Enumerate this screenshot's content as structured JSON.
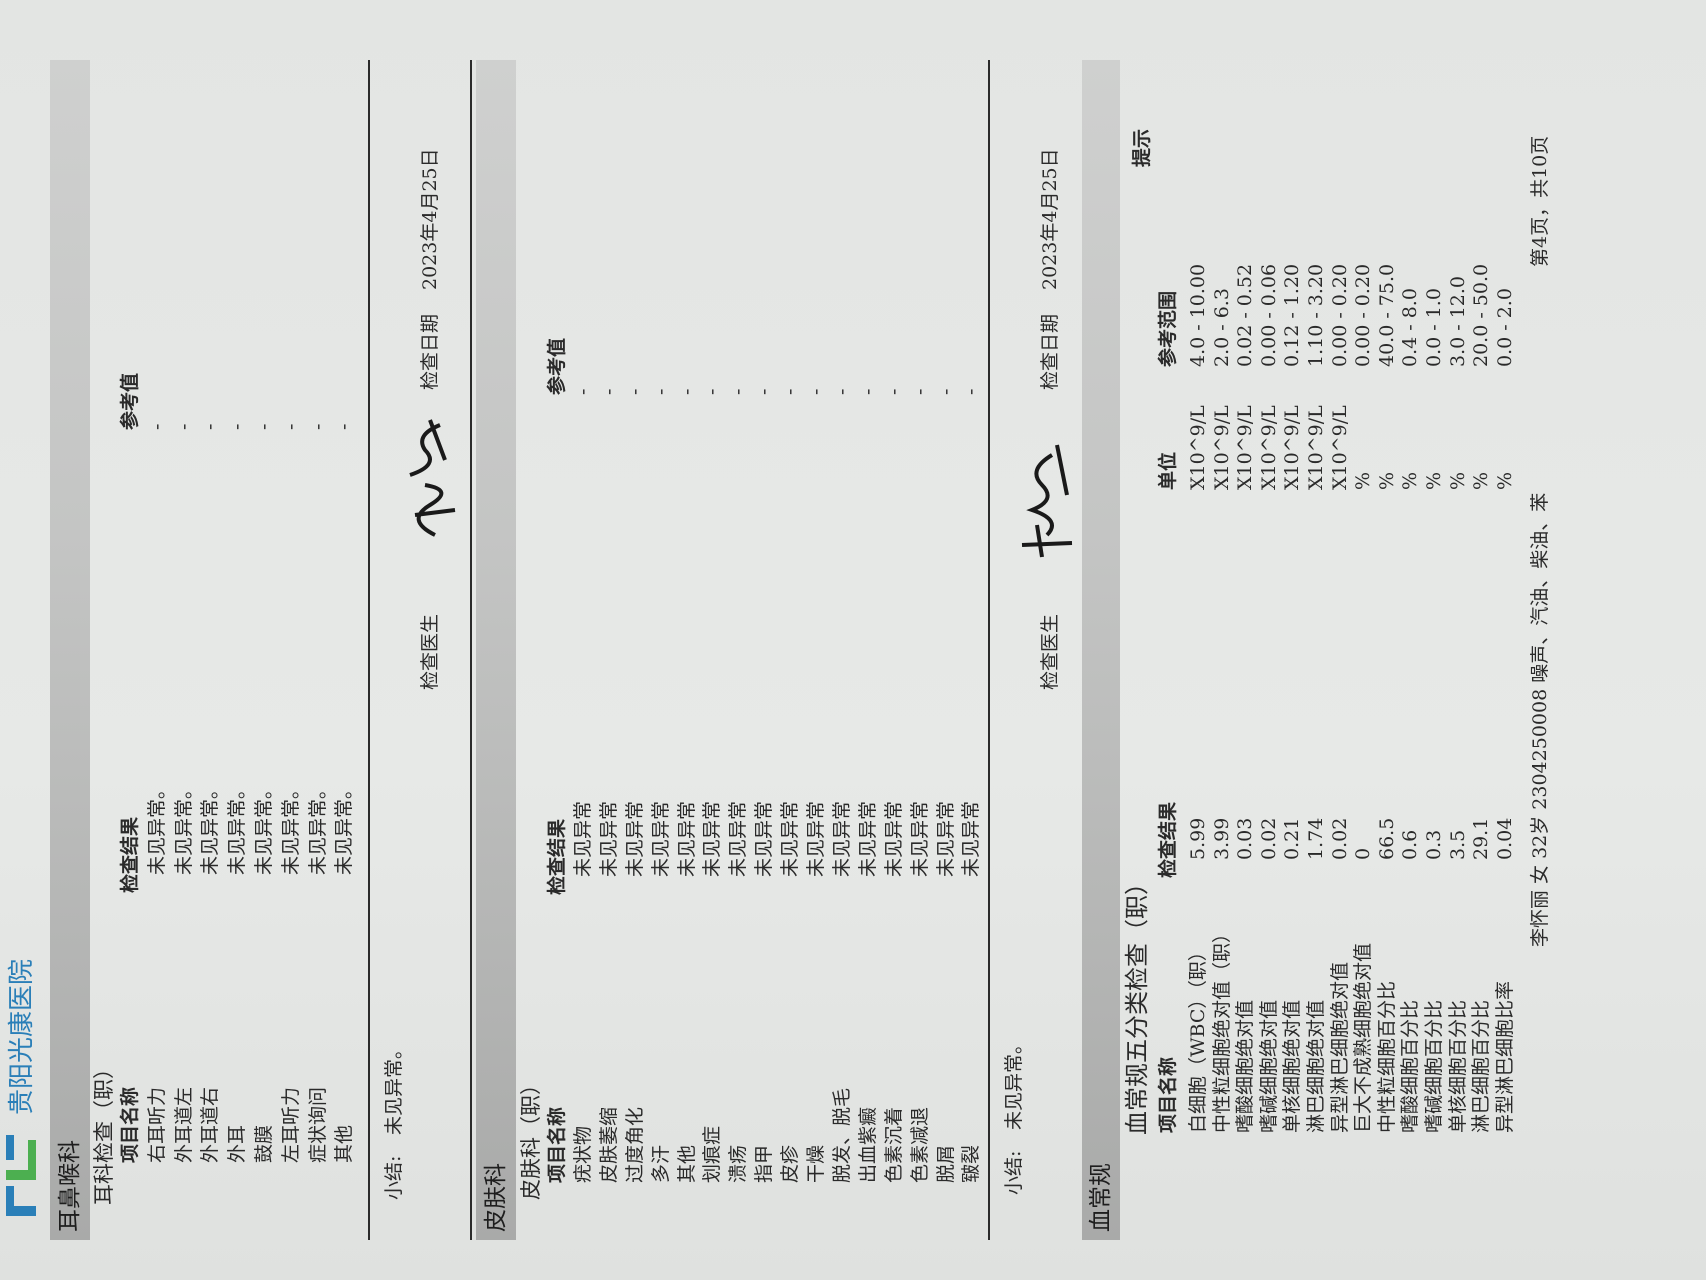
{
  "hospital": {
    "name": "贵阳光康医院"
  },
  "ent": {
    "department": "耳鼻喉科",
    "subtitle": "耳科检查（职）",
    "headers": {
      "item": "项目名称",
      "result": "检查结果",
      "reference": "参考值"
    },
    "rows": [
      {
        "item": "右耳听力",
        "result": "未见异常。",
        "reference": "-"
      },
      {
        "item": "外耳道左",
        "result": "未见异常。",
        "reference": "-"
      },
      {
        "item": "外耳道右",
        "result": "未见异常。",
        "reference": "-"
      },
      {
        "item": "外耳",
        "result": "未见异常。",
        "reference": "-"
      },
      {
        "item": "鼓膜",
        "result": "未见异常。",
        "reference": "-"
      },
      {
        "item": "左耳听力",
        "result": "未见异常。",
        "reference": "-"
      },
      {
        "item": "症状询问",
        "result": "未见异常。",
        "reference": "-"
      },
      {
        "item": "其他",
        "result": "未见异常。",
        "reference": "-"
      }
    ],
    "summary_label": "小结:",
    "summary": "未见异常。",
    "doctor_label": "检查医生",
    "date_label": "检查日期",
    "date": "2023年4月25日"
  },
  "derm": {
    "department": "皮肤科",
    "subtitle": "皮肤科（职）",
    "headers": {
      "item": "项目名称",
      "result": "检查结果",
      "reference": "参考值"
    },
    "rows": [
      {
        "item": "疣状物",
        "result": "未见异常",
        "reference": "-"
      },
      {
        "item": "皮肤萎缩",
        "result": "未见异常",
        "reference": "-"
      },
      {
        "item": "过度角化",
        "result": "未见异常",
        "reference": "-"
      },
      {
        "item": "多汗",
        "result": "未见异常",
        "reference": "-"
      },
      {
        "item": "其他",
        "result": "未见异常",
        "reference": "-"
      },
      {
        "item": "划痕症",
        "result": "未见异常",
        "reference": "-"
      },
      {
        "item": "溃疡",
        "result": "未见异常",
        "reference": "-"
      },
      {
        "item": "指甲",
        "result": "未见异常",
        "reference": "-"
      },
      {
        "item": "皮疹",
        "result": "未见异常",
        "reference": "-"
      },
      {
        "item": "干燥",
        "result": "未见异常",
        "reference": "-"
      },
      {
        "item": "脱发、脱毛",
        "result": "未见异常",
        "reference": "-"
      },
      {
        "item": "出血紫癜",
        "result": "未见异常",
        "reference": "-"
      },
      {
        "item": "色素沉着",
        "result": "未见异常",
        "reference": "-"
      },
      {
        "item": "色素减退",
        "result": "未见异常",
        "reference": "-"
      },
      {
        "item": "脱屑",
        "result": "未见异常",
        "reference": "-"
      },
      {
        "item": "皲裂",
        "result": "未见异常",
        "reference": "-"
      }
    ],
    "summary_label": "小结:",
    "summary": "未见异常。",
    "doctor_label": "检查医生",
    "date_label": "检查日期",
    "date": "2023年4月25日"
  },
  "blood": {
    "department": "血常规",
    "subtitle": "血常规五分类检查（职）",
    "headers": {
      "item": "项目名称",
      "result": "检查结果",
      "unit": "单位",
      "range": "参考范围",
      "hint": "提示"
    },
    "rows": [
      {
        "item": "白细胞（WBC）（职）",
        "result": "5.99",
        "unit": "X10^9/L",
        "range": "4.0 - 10.00"
      },
      {
        "item": "中性粒细胞绝对值（职）",
        "result": "3.99",
        "unit": "X10^9/L",
        "range": "2.0 - 6.3"
      },
      {
        "item": "嗜酸细胞绝对值",
        "result": "0.03",
        "unit": "X10^9/L",
        "range": "0.02 - 0.52"
      },
      {
        "item": "嗜碱细胞绝对值",
        "result": "0.02",
        "unit": "X10^9/L",
        "range": "0.00 - 0.06"
      },
      {
        "item": "单核细胞绝对值",
        "result": "0.21",
        "unit": "X10^9/L",
        "range": "0.12 - 1.20"
      },
      {
        "item": "淋巴细胞绝对值",
        "result": "1.74",
        "unit": "X10^9/L",
        "range": "1.10 - 3.20"
      },
      {
        "item": "异型淋巴细胞绝对值",
        "result": "0.02",
        "unit": "X10^9/L",
        "range": "0.00 - 0.20"
      },
      {
        "item": "巨大不成熟细胞绝对值",
        "result": "0",
        "unit": "%",
        "range": "0.00 - 0.20"
      },
      {
        "item": "中性粒细胞百分比",
        "result": "66.5",
        "unit": "%",
        "range": "40.0 - 75.0"
      },
      {
        "item": "嗜酸细胞百分比",
        "result": "0.6",
        "unit": "%",
        "range": "0.4 - 8.0"
      },
      {
        "item": "嗜碱细胞百分比",
        "result": "0.3",
        "unit": "%",
        "range": "0.0 - 1.0"
      },
      {
        "item": "单核细胞百分比",
        "result": "3.5",
        "unit": "%",
        "range": "3.0 - 12.0"
      },
      {
        "item": "淋巴细胞百分比",
        "result": "29.1",
        "unit": "%",
        "range": "20.0 - 50.0"
      },
      {
        "item": "异型淋巴细胞比率",
        "result": "0.04",
        "unit": "%",
        "range": "0.0 - 2.0"
      }
    ]
  },
  "footer": {
    "patient": "李怀丽  女  32岁  2304250008  噪声、汽油、柴油、苯",
    "page": "第4页，共10页"
  },
  "colors": {
    "paper": "#e4e6e4",
    "section_bar": "#b5b6b5",
    "logo_blue": "#2a7fb8",
    "logo_green": "#4caf50"
  }
}
